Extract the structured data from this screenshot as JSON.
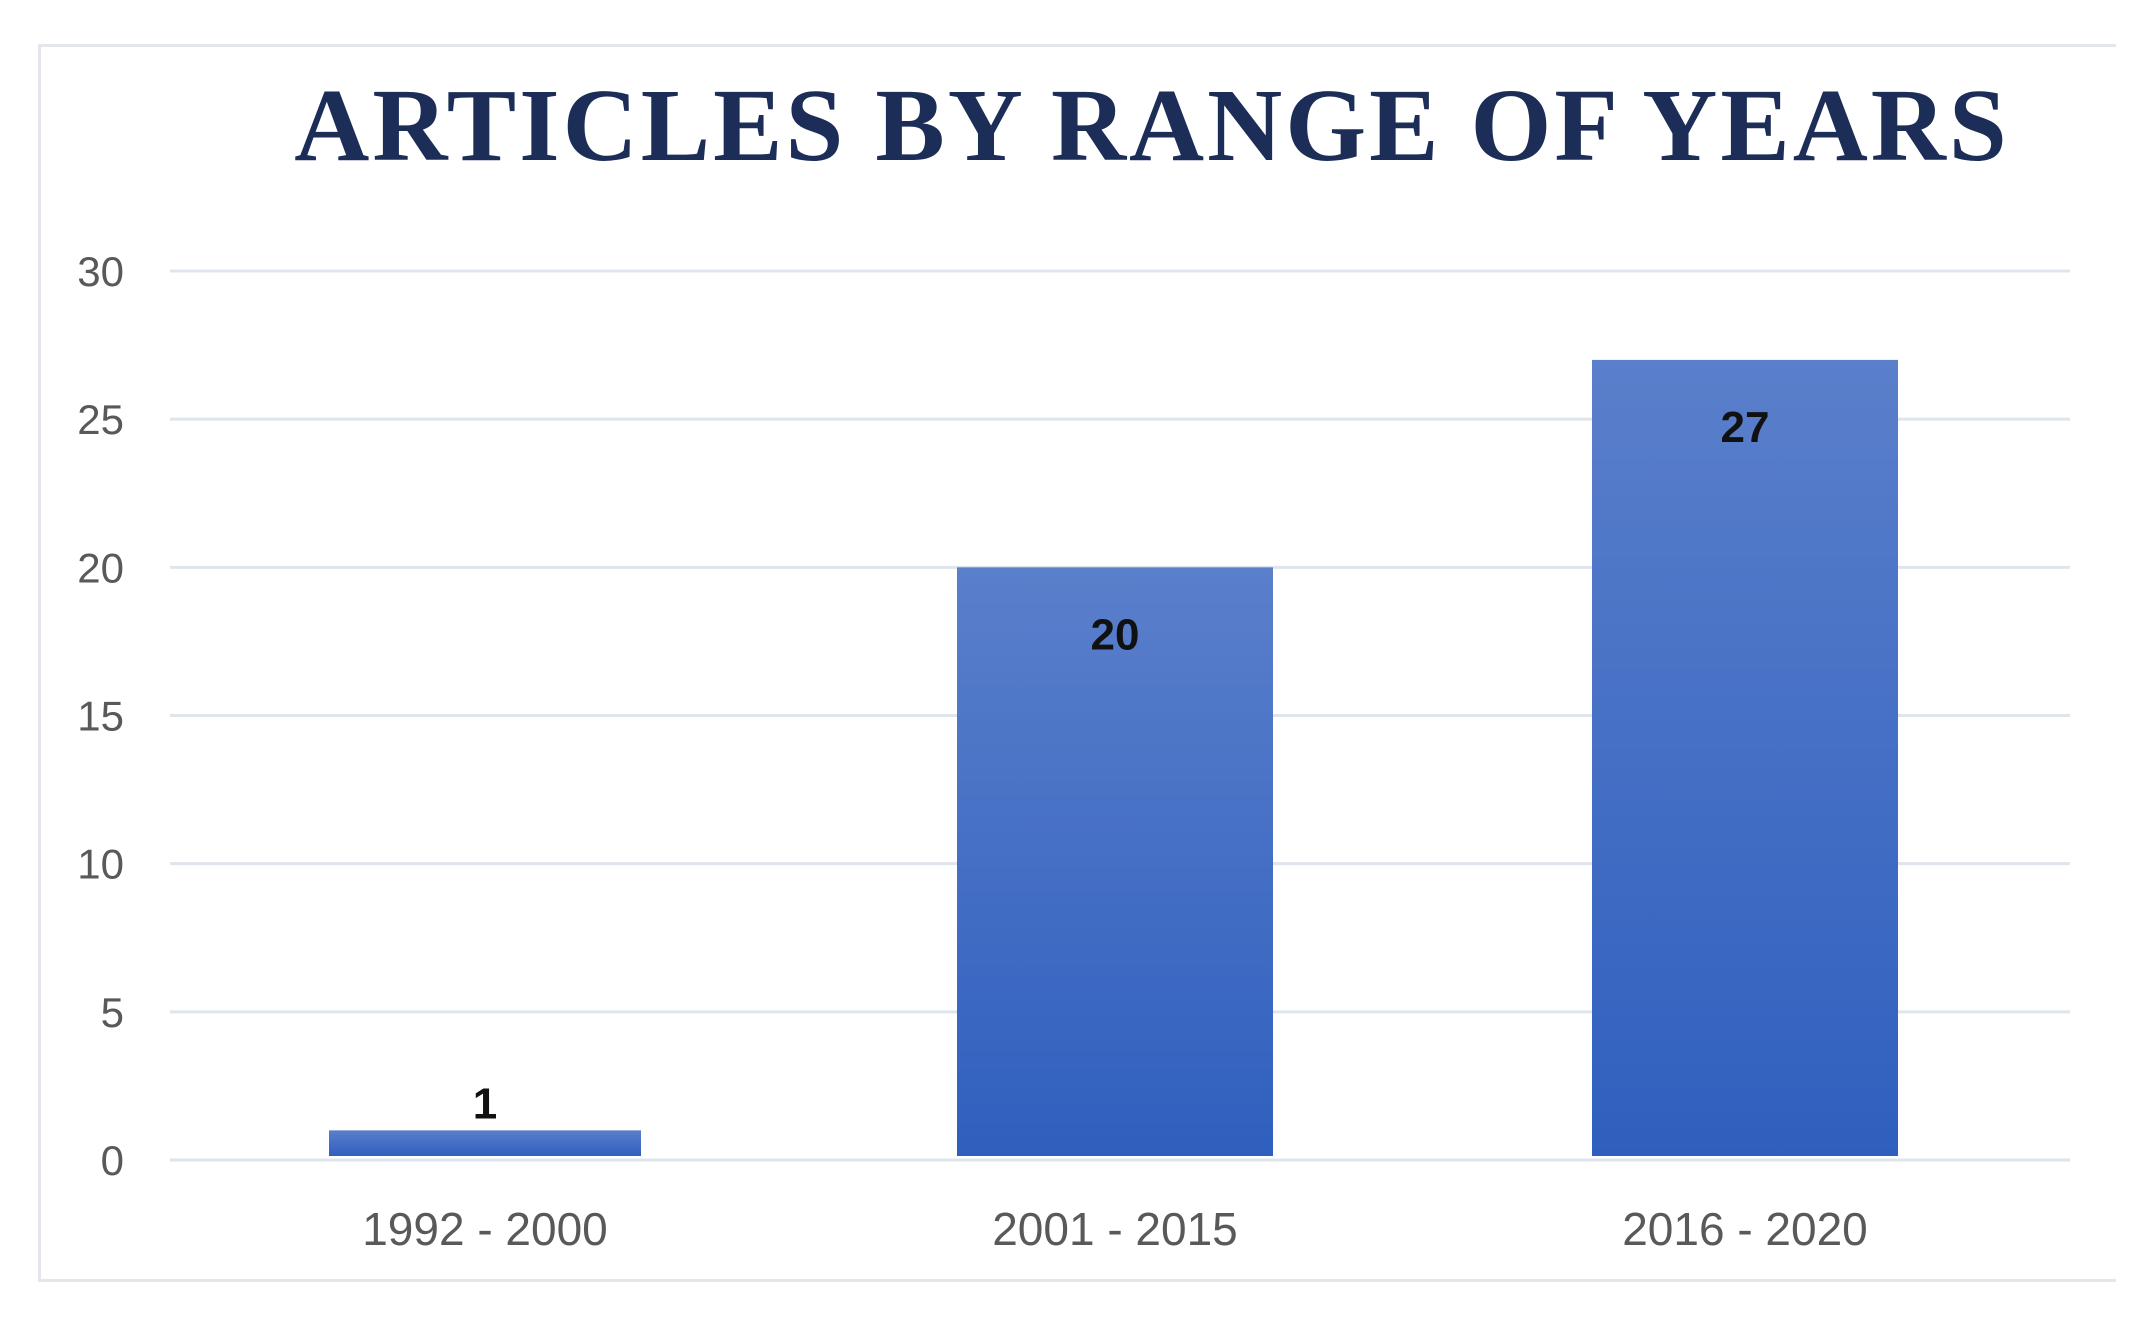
{
  "chart_data": {
    "type": "bar",
    "title": "ARTICLES BY RANGE OF YEARS",
    "xlabel": "",
    "ylabel": "",
    "categories": [
      "1992 - 2000",
      "2001 - 2015",
      "2016 - 2020"
    ],
    "values": [
      1,
      20,
      27
    ],
    "data_labels": [
      "1",
      "20",
      "27"
    ],
    "ylim": [
      0,
      30
    ],
    "yticks": [
      0,
      5,
      10,
      15,
      20,
      25,
      30
    ],
    "grid": true,
    "legend": "none",
    "colors": {
      "bar_top": "#5a7fcb",
      "bar_bottom": "#2f5fbe",
      "title": "#1c2e57",
      "grid": "#dfe5ec"
    }
  }
}
